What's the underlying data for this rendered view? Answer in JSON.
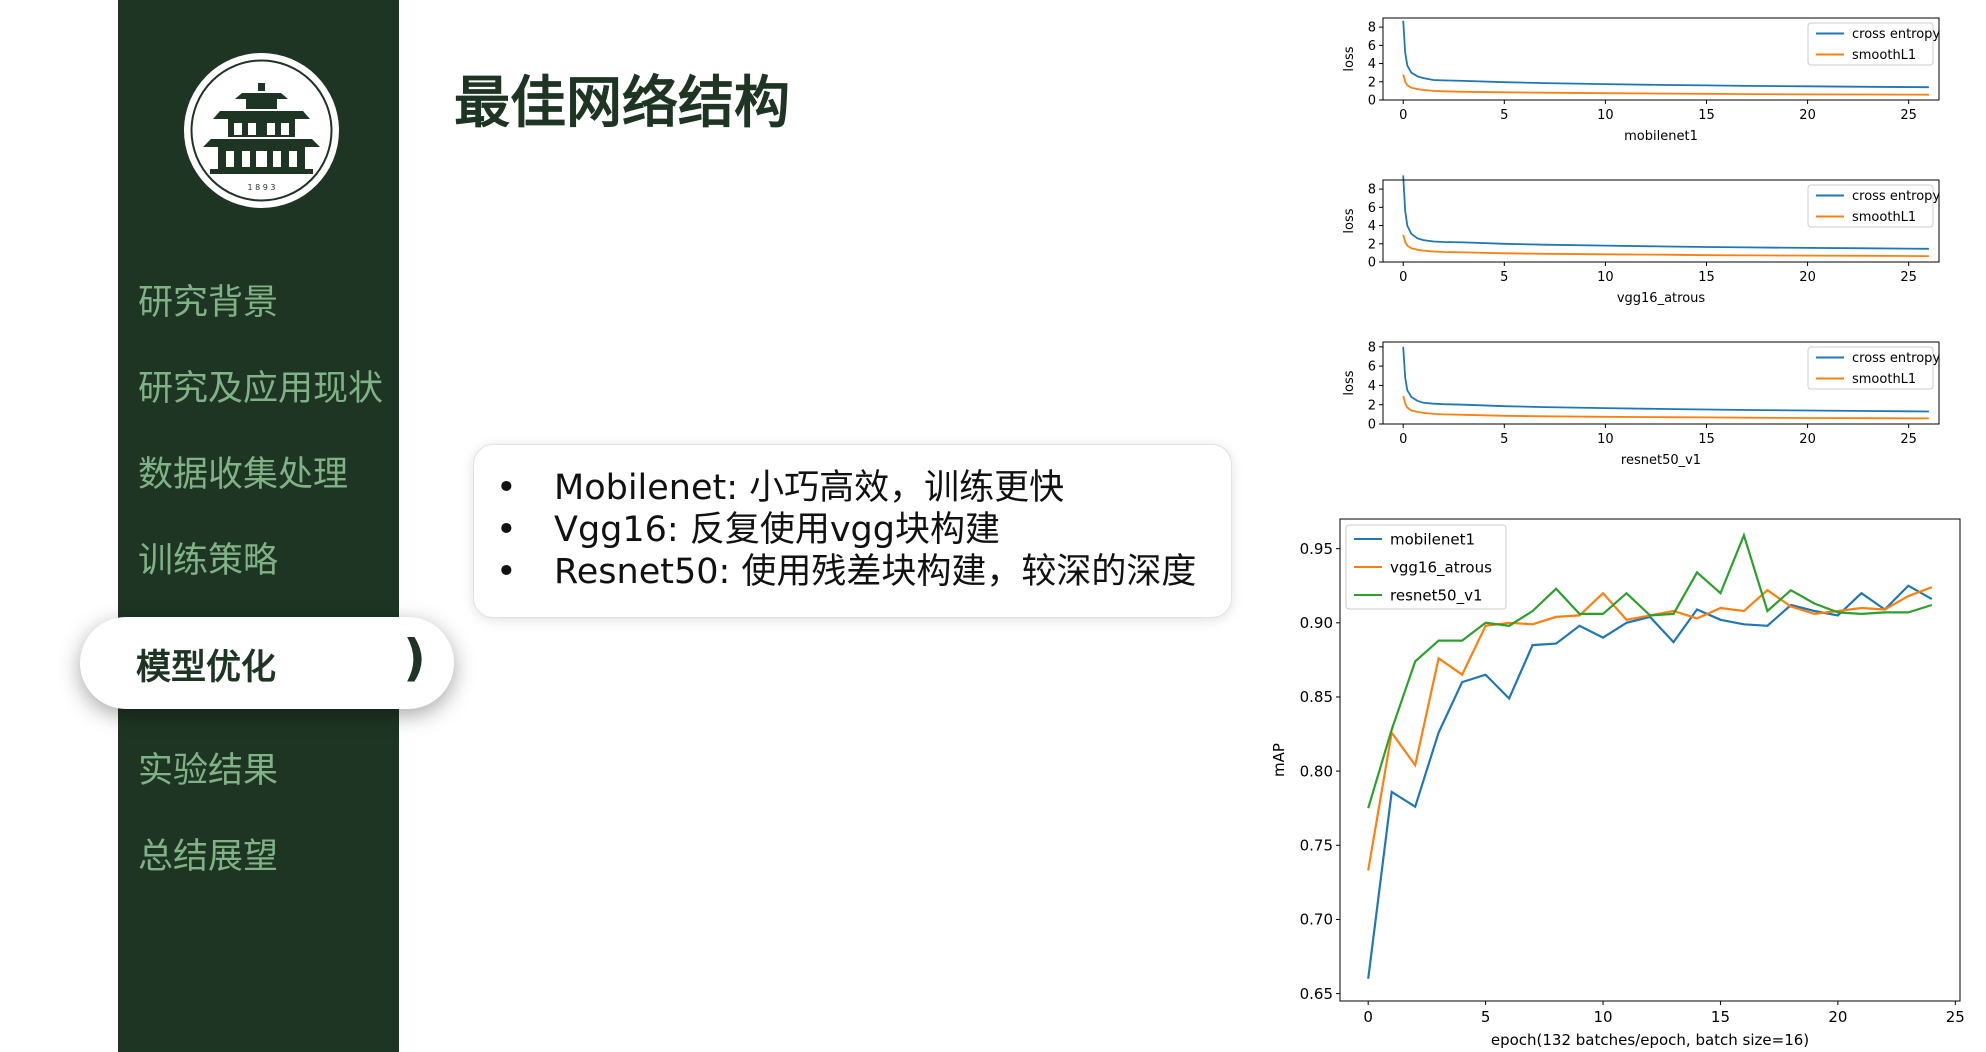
{
  "sidebar": {
    "bg_color": "#1e3524",
    "logo_year": "1 8 9 3",
    "items": [
      {
        "label": "研究背景"
      },
      {
        "label": "研究及应用现状"
      },
      {
        "label": "数据收集处理"
      },
      {
        "label": "训练策略"
      },
      {
        "label": "模型优化",
        "active": true
      },
      {
        "label": "实验结果"
      },
      {
        "label": "总结展望"
      }
    ],
    "active_marker": ")"
  },
  "main": {
    "title": "最佳网络结构",
    "bullet_symbol": "•",
    "bullets": [
      "Mobilenet: 小巧高效，训练更快",
      "Vgg16: 反复使用vgg块构建",
      "Resnet50: 使用残差块构建，较深的深度"
    ]
  },
  "colors": {
    "blue": "#1f77b4",
    "orange": "#ff7f0e",
    "green": "#2ca02c",
    "accent": "#7fb285"
  },
  "chart_data": [
    {
      "type": "line",
      "title": "",
      "xlabel": "mobilenet1",
      "ylabel": "loss",
      "xlim": [
        -1,
        26.5
      ],
      "ylim": [
        0,
        9
      ],
      "xticks": [
        0,
        5,
        10,
        15,
        20,
        25
      ],
      "yticks": [
        0,
        2,
        4,
        6,
        8
      ],
      "legend": "top-right",
      "series": [
        {
          "name": "cross entropy",
          "color": "#1f77b4",
          "x": [
            0,
            0.1,
            0.2,
            0.4,
            0.7,
            1,
            1.5,
            2,
            3,
            5,
            7,
            10,
            13,
            15,
            17,
            20,
            23,
            26
          ],
          "values": [
            8.7,
            5.2,
            3.8,
            3.0,
            2.6,
            2.4,
            2.2,
            2.15,
            2.1,
            1.95,
            1.85,
            1.75,
            1.65,
            1.6,
            1.55,
            1.5,
            1.45,
            1.4
          ]
        },
        {
          "name": "smoothL1",
          "color": "#ff7f0e",
          "x": [
            0,
            0.1,
            0.2,
            0.4,
            0.7,
            1,
            1.5,
            2,
            3,
            5,
            7,
            10,
            13,
            15,
            17,
            20,
            23,
            26
          ],
          "values": [
            2.8,
            2.0,
            1.6,
            1.35,
            1.2,
            1.1,
            1.0,
            0.95,
            0.9,
            0.85,
            0.8,
            0.75,
            0.7,
            0.68,
            0.65,
            0.62,
            0.6,
            0.58
          ]
        }
      ]
    },
    {
      "type": "line",
      "title": "",
      "xlabel": "vgg16_atrous",
      "ylabel": "loss",
      "xlim": [
        -1,
        26.5
      ],
      "ylim": [
        0,
        9
      ],
      "xticks": [
        0,
        5,
        10,
        15,
        20,
        25
      ],
      "yticks": [
        0,
        2,
        4,
        6,
        8
      ],
      "legend": "top-right",
      "series": [
        {
          "name": "cross entropy",
          "color": "#1f77b4",
          "x": [
            0,
            0.1,
            0.2,
            0.4,
            0.7,
            1,
            1.5,
            2,
            3,
            5,
            7,
            10,
            13,
            15,
            17,
            20,
            23,
            26
          ],
          "values": [
            9.5,
            5.6,
            4.0,
            3.1,
            2.6,
            2.4,
            2.25,
            2.2,
            2.15,
            2.0,
            1.9,
            1.8,
            1.7,
            1.65,
            1.6,
            1.55,
            1.5,
            1.45
          ]
        },
        {
          "name": "smoothL1",
          "color": "#ff7f0e",
          "x": [
            0,
            0.1,
            0.2,
            0.4,
            0.7,
            1,
            1.5,
            2,
            3,
            5,
            7,
            10,
            13,
            15,
            17,
            20,
            23,
            26
          ],
          "values": [
            3.0,
            2.2,
            1.8,
            1.5,
            1.35,
            1.25,
            1.15,
            1.1,
            1.05,
            0.95,
            0.9,
            0.85,
            0.8,
            0.75,
            0.72,
            0.7,
            0.68,
            0.65
          ]
        }
      ]
    },
    {
      "type": "line",
      "title": "",
      "xlabel": "resnet50_v1",
      "ylabel": "loss",
      "xlim": [
        -1,
        26.5
      ],
      "ylim": [
        0,
        8.5
      ],
      "xticks": [
        0,
        5,
        10,
        15,
        20,
        25
      ],
      "yticks": [
        0,
        2,
        4,
        6,
        8
      ],
      "legend": "top-right",
      "series": [
        {
          "name": "cross entropy",
          "color": "#1f77b4",
          "x": [
            0,
            0.1,
            0.2,
            0.4,
            0.7,
            1,
            1.5,
            2,
            3,
            5,
            7,
            10,
            13,
            15,
            17,
            20,
            23,
            26
          ],
          "values": [
            8.0,
            4.8,
            3.5,
            2.8,
            2.4,
            2.2,
            2.1,
            2.05,
            2.0,
            1.85,
            1.75,
            1.65,
            1.55,
            1.5,
            1.45,
            1.4,
            1.35,
            1.3
          ]
        },
        {
          "name": "smoothL1",
          "color": "#ff7f0e",
          "x": [
            0,
            0.1,
            0.2,
            0.4,
            0.7,
            1,
            1.5,
            2,
            3,
            5,
            7,
            10,
            13,
            15,
            17,
            20,
            23,
            26
          ],
          "values": [
            2.9,
            2.1,
            1.7,
            1.4,
            1.25,
            1.15,
            1.05,
            1.0,
            0.95,
            0.85,
            0.8,
            0.75,
            0.7,
            0.68,
            0.65,
            0.62,
            0.6,
            0.58
          ]
        }
      ]
    },
    {
      "type": "line",
      "title": "",
      "xlabel": "epoch(132 batches/epoch, batch size=16)",
      "ylabel": "mAP",
      "xlim": [
        -1.2,
        25.2
      ],
      "ylim": [
        0.645,
        0.97
      ],
      "xticks": [
        0,
        5,
        10,
        15,
        20,
        25
      ],
      "yticks": [
        0.65,
        0.7,
        0.75,
        0.8,
        0.85,
        0.9,
        0.95
      ],
      "legend": "top-left",
      "series": [
        {
          "name": "mobilenet1",
          "color": "#1f77b4",
          "x": [
            0,
            1,
            2,
            3,
            4,
            5,
            6,
            7,
            8,
            9,
            10,
            11,
            12,
            13,
            14,
            15,
            16,
            17,
            18,
            19,
            20,
            21,
            22,
            23,
            24
          ],
          "values": [
            0.66,
            0.786,
            0.776,
            0.826,
            0.86,
            0.865,
            0.849,
            0.885,
            0.886,
            0.898,
            0.89,
            0.9,
            0.904,
            0.887,
            0.909,
            0.902,
            0.899,
            0.898,
            0.912,
            0.908,
            0.905,
            0.92,
            0.909,
            0.925,
            0.916
          ]
        },
        {
          "name": "vgg16_atrous",
          "color": "#ff7f0e",
          "x": [
            0,
            1,
            2,
            3,
            4,
            5,
            6,
            7,
            8,
            9,
            10,
            11,
            12,
            13,
            14,
            15,
            16,
            17,
            18,
            19,
            20,
            21,
            22,
            23,
            24
          ],
          "values": [
            0.733,
            0.826,
            0.804,
            0.876,
            0.865,
            0.898,
            0.9,
            0.899,
            0.904,
            0.905,
            0.92,
            0.902,
            0.905,
            0.908,
            0.903,
            0.91,
            0.908,
            0.922,
            0.911,
            0.906,
            0.908,
            0.91,
            0.909,
            0.918,
            0.924
          ]
        },
        {
          "name": "resnet50_v1",
          "color": "#2ca02c",
          "x": [
            0,
            1,
            2,
            3,
            4,
            5,
            6,
            7,
            8,
            9,
            10,
            11,
            12,
            13,
            14,
            15,
            16,
            17,
            18,
            19,
            20,
            21,
            22,
            23,
            24
          ],
          "values": [
            0.775,
            0.828,
            0.874,
            0.888,
            0.888,
            0.9,
            0.898,
            0.908,
            0.923,
            0.906,
            0.906,
            0.92,
            0.905,
            0.906,
            0.934,
            0.92,
            0.959,
            0.908,
            0.922,
            0.913,
            0.907,
            0.906,
            0.907,
            0.907,
            0.912
          ]
        }
      ]
    }
  ]
}
